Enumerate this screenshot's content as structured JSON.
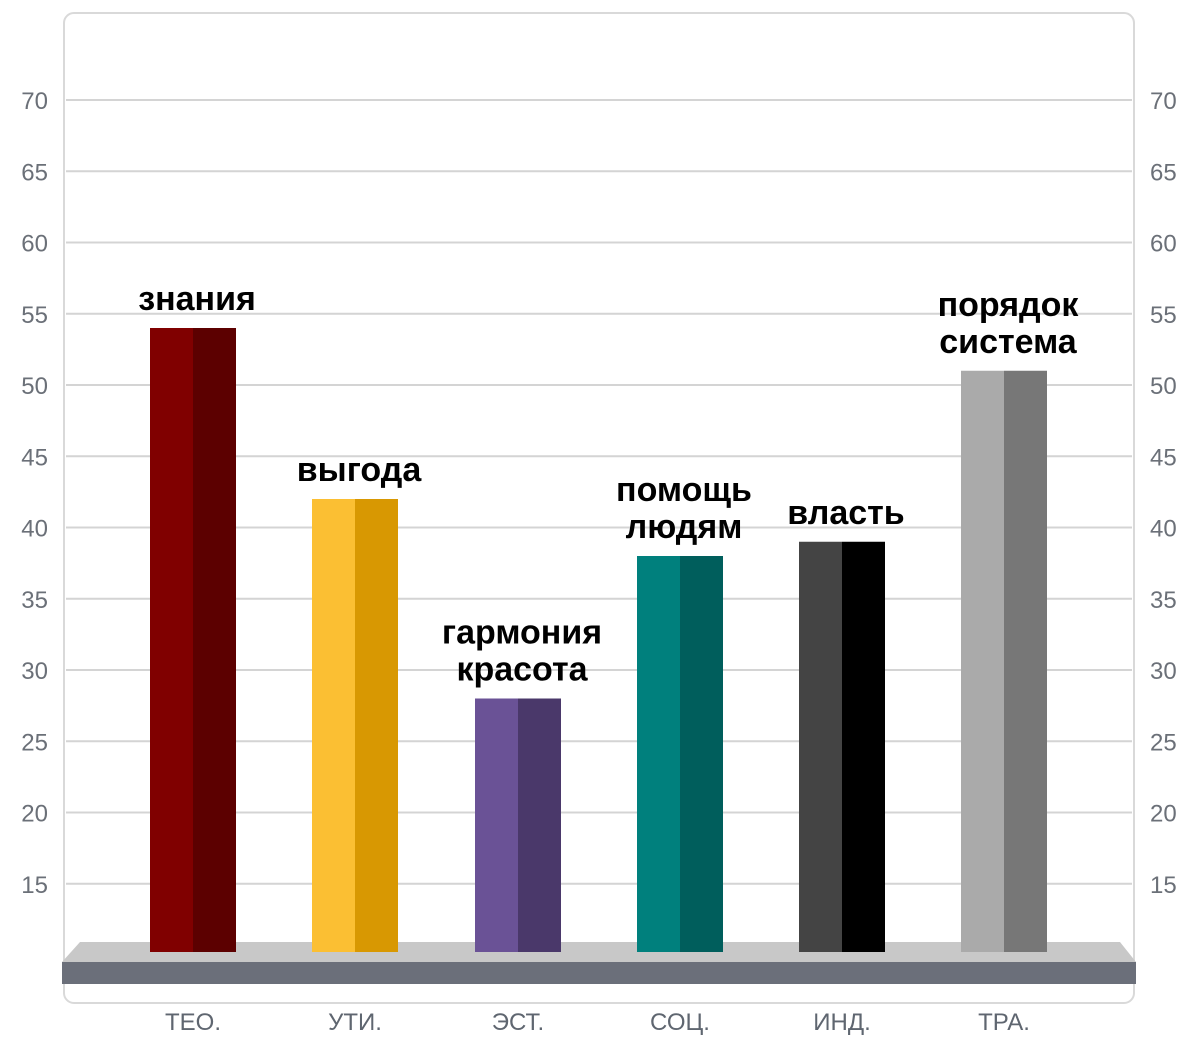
{
  "chart_data": {
    "type": "bar",
    "categories": [
      "ТЕО.",
      "УТИ.",
      "ЭСТ.",
      "СОЦ.",
      "ИНД.",
      "ТРА."
    ],
    "values": [
      54,
      42,
      28,
      38,
      39,
      51
    ],
    "annotations": [
      [
        "знания"
      ],
      [
        "выгода"
      ],
      [
        "гармония",
        "красота"
      ],
      [
        "помощь",
        "людям"
      ],
      [
        "власть"
      ],
      [
        "порядок",
        "система"
      ]
    ],
    "colors": [
      {
        "front": "#800000",
        "side": "#5c0000"
      },
      {
        "front": "#fbbf33",
        "side": "#d89802"
      },
      {
        "front": "#6a5296",
        "side": "#4a386a"
      },
      {
        "front": "#00807d",
        "side": "#005e5c"
      },
      {
        "front": "#444444",
        "side": "#000000"
      },
      {
        "front": "#aaaaaa",
        "side": "#777777"
      }
    ],
    "yticks": [
      15,
      20,
      25,
      30,
      35,
      40,
      45,
      50,
      55,
      60,
      65,
      70
    ],
    "ylim": [
      10,
      75
    ],
    "grid": true,
    "title": "",
    "xlabel": "",
    "ylabel": ""
  }
}
